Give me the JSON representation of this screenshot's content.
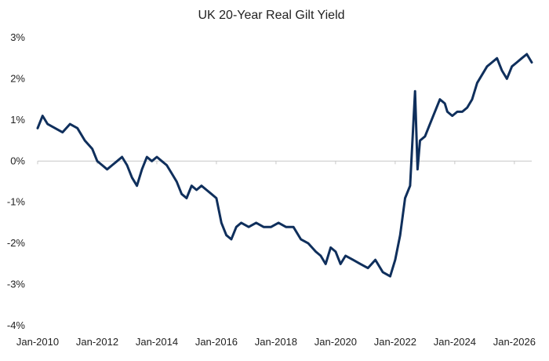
{
  "chart_data": {
    "type": "line",
    "title": "UK 20-Year Real Gilt Yield",
    "xlabel": "",
    "ylabel": "",
    "x_ticks": [
      "Jan-2010",
      "Jan-2012",
      "Jan-2014",
      "Jan-2016",
      "Jan-2018",
      "Jan-2020",
      "Jan-2022",
      "Jan-2024",
      "Jan-2026"
    ],
    "y_ticks": [
      {
        "value": 3,
        "label": "3%"
      },
      {
        "value": 2,
        "label": "2%"
      },
      {
        "value": 1,
        "label": "1%"
      },
      {
        "value": 0,
        "label": "0%"
      },
      {
        "value": -1,
        "label": "-1%"
      },
      {
        "value": -2,
        "label": "-2%"
      },
      {
        "value": -3,
        "label": "-3%"
      },
      {
        "value": -4,
        "label": "-4%"
      }
    ],
    "xlim": [
      "2010-01",
      "2026-08"
    ],
    "ylim": [
      -4,
      3
    ],
    "grid": false,
    "zero_line": true,
    "line_color": "#0f2f5c",
    "series": [
      {
        "x": [
          "2010-01",
          "2010-03",
          "2010-05",
          "2010-08",
          "2010-11",
          "2011-02",
          "2011-05",
          "2011-08",
          "2011-11",
          "2012-01",
          "2012-03",
          "2012-05",
          "2012-07",
          "2012-09",
          "2012-11",
          "2013-01",
          "2013-03",
          "2013-05",
          "2013-07",
          "2013-09",
          "2013-11",
          "2014-01",
          "2014-03",
          "2014-05",
          "2014-07",
          "2014-09",
          "2014-11",
          "2015-01",
          "2015-03",
          "2015-05",
          "2015-07",
          "2015-09",
          "2015-11",
          "2016-01",
          "2016-03",
          "2016-05",
          "2016-07",
          "2016-09",
          "2016-11",
          "2017-02",
          "2017-05",
          "2017-08",
          "2017-11",
          "2018-02",
          "2018-05",
          "2018-08",
          "2018-11",
          "2019-02",
          "2019-05",
          "2019-07",
          "2019-09",
          "2019-11",
          "2020-01",
          "2020-03",
          "2020-05",
          "2020-08",
          "2020-11",
          "2021-02",
          "2021-05",
          "2021-08",
          "2021-11",
          "2022-01",
          "2022-03",
          "2022-05",
          "2022-07",
          "2022-09",
          "2022-10",
          "2022-11",
          "2023-01",
          "2023-03",
          "2023-05",
          "2023-07",
          "2023-09",
          "2023-10",
          "2023-12",
          "2024-02",
          "2024-04",
          "2024-06",
          "2024-08",
          "2024-10",
          "2024-12",
          "2025-02",
          "2025-04",
          "2025-06",
          "2025-08",
          "2025-10",
          "2025-12",
          "2026-02",
          "2026-04",
          "2026-06",
          "2026-08"
        ],
        "y": [
          0.8,
          1.1,
          0.9,
          0.8,
          0.7,
          0.9,
          0.8,
          0.5,
          0.3,
          0.0,
          -0.1,
          -0.2,
          -0.1,
          0.0,
          0.1,
          -0.1,
          -0.4,
          -0.6,
          -0.2,
          0.1,
          0.0,
          0.1,
          0.0,
          -0.1,
          -0.3,
          -0.5,
          -0.8,
          -0.9,
          -0.6,
          -0.7,
          -0.6,
          -0.7,
          -0.8,
          -0.9,
          -1.5,
          -1.8,
          -1.9,
          -1.6,
          -1.5,
          -1.6,
          -1.5,
          -1.6,
          -1.6,
          -1.5,
          -1.6,
          -1.6,
          -1.9,
          -2.0,
          -2.2,
          -2.3,
          -2.5,
          -2.1,
          -2.2,
          -2.5,
          -2.3,
          -2.4,
          -2.5,
          -2.6,
          -2.4,
          -2.7,
          -2.8,
          -2.4,
          -1.8,
          -0.9,
          -0.6,
          1.7,
          -0.2,
          0.5,
          0.6,
          0.9,
          1.2,
          1.5,
          1.4,
          1.2,
          1.1,
          1.2,
          1.2,
          1.3,
          1.5,
          1.9,
          2.1,
          2.3,
          2.4,
          2.5,
          2.2,
          2.0,
          2.3,
          2.4,
          2.5,
          2.6,
          2.4
        ]
      }
    ]
  }
}
